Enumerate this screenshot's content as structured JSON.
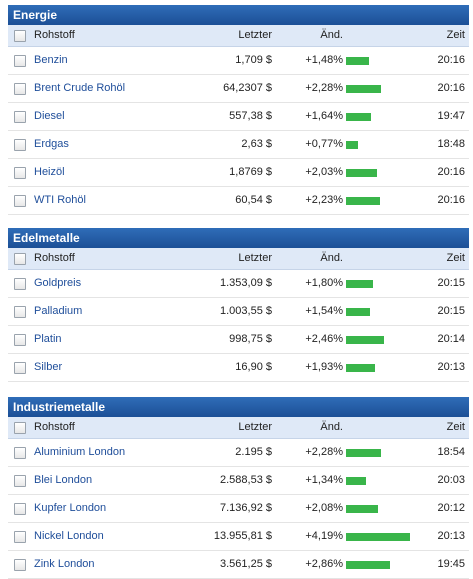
{
  "columns": {
    "name": "Rohstoff",
    "last": "Letzter",
    "change": "Änd.",
    "time": "Zeit"
  },
  "colors": {
    "header": "#1c4f96",
    "subheader": "#dfe9f7",
    "link": "#1f4e9a",
    "bar": "#39b54a"
  },
  "sections": [
    {
      "title": "Energie",
      "rows": [
        {
          "name": "Benzin",
          "last": "1,709 $",
          "change": "+1,48%",
          "change_pct": 1.48,
          "time": "20:16"
        },
        {
          "name": "Brent Crude Rohöl",
          "last": "64,2307 $",
          "change": "+2,28%",
          "change_pct": 2.28,
          "time": "20:16"
        },
        {
          "name": "Diesel",
          "last": "557,38 $",
          "change": "+1,64%",
          "change_pct": 1.64,
          "time": "19:47"
        },
        {
          "name": "Erdgas",
          "last": "2,63 $",
          "change": "+0,77%",
          "change_pct": 0.77,
          "time": "18:48"
        },
        {
          "name": "Heizöl",
          "last": "1,8769 $",
          "change": "+2,03%",
          "change_pct": 2.03,
          "time": "20:16"
        },
        {
          "name": "WTI Rohöl",
          "last": "60,54 $",
          "change": "+2,23%",
          "change_pct": 2.23,
          "time": "20:16"
        }
      ]
    },
    {
      "title": "Edelmetalle",
      "rows": [
        {
          "name": "Goldpreis",
          "last": "1.353,09 $",
          "change": "+1,80%",
          "change_pct": 1.8,
          "time": "20:15"
        },
        {
          "name": "Palladium",
          "last": "1.003,55 $",
          "change": "+1,54%",
          "change_pct": 1.54,
          "time": "20:15"
        },
        {
          "name": "Platin",
          "last": "998,75 $",
          "change": "+2,46%",
          "change_pct": 2.46,
          "time": "20:14"
        },
        {
          "name": "Silber",
          "last": "16,90 $",
          "change": "+1,93%",
          "change_pct": 1.93,
          "time": "20:13"
        }
      ]
    },
    {
      "title": "Industriemetalle",
      "rows": [
        {
          "name": "Aluminium London",
          "last": "2.195 $",
          "change": "+2,28%",
          "change_pct": 2.28,
          "time": "18:54"
        },
        {
          "name": "Blei London",
          "last": "2.588,53 $",
          "change": "+1,34%",
          "change_pct": 1.34,
          "time": "20:03"
        },
        {
          "name": "Kupfer London",
          "last": "7.136,92 $",
          "change": "+2,08%",
          "change_pct": 2.08,
          "time": "20:12"
        },
        {
          "name": "Nickel London",
          "last": "13.955,81 $",
          "change": "+4,19%",
          "change_pct": 4.19,
          "time": "20:13"
        },
        {
          "name": "Zink London",
          "last": "3.561,25 $",
          "change": "+2,86%",
          "change_pct": 2.86,
          "time": "19:45"
        }
      ]
    }
  ]
}
